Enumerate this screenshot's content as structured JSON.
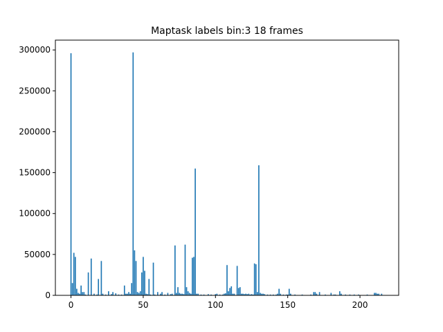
{
  "chart_data": {
    "type": "bar",
    "title": "Maptask labels bin:3 18 frames",
    "xlabel": "",
    "ylabel": "",
    "xlim": [
      -10.8,
      226.8
    ],
    "ylim": [
      0,
      312000
    ],
    "grid": false,
    "color": "#1f77b4",
    "x_ticks": [
      0,
      50,
      100,
      150,
      200
    ],
    "y_ticks": [
      0,
      50000,
      100000,
      150000,
      200000,
      250000,
      300000
    ],
    "x_tick_labels": [
      "0",
      "50",
      "100",
      "150",
      "200"
    ],
    "y_tick_labels": [
      "0",
      "50000",
      "100000",
      "150000",
      "200000",
      "250000",
      "300000"
    ],
    "bars": [
      {
        "x": 0,
        "y": 296000
      },
      {
        "x": 1,
        "y": 15000
      },
      {
        "x": 2,
        "y": 52000
      },
      {
        "x": 3,
        "y": 47000
      },
      {
        "x": 4,
        "y": 8000
      },
      {
        "x": 5,
        "y": 3000
      },
      {
        "x": 6,
        "y": 2000
      },
      {
        "x": 7,
        "y": 12000
      },
      {
        "x": 8,
        "y": 4000
      },
      {
        "x": 9,
        "y": 4000
      },
      {
        "x": 10,
        "y": 1000
      },
      {
        "x": 12,
        "y": 28000
      },
      {
        "x": 14,
        "y": 45000
      },
      {
        "x": 16,
        "y": 2000
      },
      {
        "x": 18,
        "y": 1000
      },
      {
        "x": 19,
        "y": 20000
      },
      {
        "x": 21,
        "y": 42000
      },
      {
        "x": 22,
        "y": 2000
      },
      {
        "x": 24,
        "y": 1000
      },
      {
        "x": 26,
        "y": 5000
      },
      {
        "x": 28,
        "y": 1500
      },
      {
        "x": 29,
        "y": 4000
      },
      {
        "x": 31,
        "y": 2500
      },
      {
        "x": 33,
        "y": 1000
      },
      {
        "x": 35,
        "y": 1000
      },
      {
        "x": 37,
        "y": 12000
      },
      {
        "x": 38,
        "y": 2000
      },
      {
        "x": 39,
        "y": 2000
      },
      {
        "x": 40,
        "y": 4000
      },
      {
        "x": 41,
        "y": 2000
      },
      {
        "x": 42,
        "y": 15000
      },
      {
        "x": 43,
        "y": 297000
      },
      {
        "x": 44,
        "y": 55000
      },
      {
        "x": 45,
        "y": 42000
      },
      {
        "x": 46,
        "y": 4000
      },
      {
        "x": 47,
        "y": 3000
      },
      {
        "x": 48,
        "y": 5000
      },
      {
        "x": 49,
        "y": 28000
      },
      {
        "x": 50,
        "y": 47000
      },
      {
        "x": 51,
        "y": 30000
      },
      {
        "x": 52,
        "y": 2000
      },
      {
        "x": 53,
        "y": 1500
      },
      {
        "x": 54,
        "y": 20000
      },
      {
        "x": 55,
        "y": 1000
      },
      {
        "x": 57,
        "y": 40000
      },
      {
        "x": 58,
        "y": 1000
      },
      {
        "x": 60,
        "y": 4000
      },
      {
        "x": 62,
        "y": 2000
      },
      {
        "x": 63,
        "y": 4000
      },
      {
        "x": 65,
        "y": 1000
      },
      {
        "x": 67,
        "y": 3000
      },
      {
        "x": 69,
        "y": 1500
      },
      {
        "x": 70,
        "y": 2000
      },
      {
        "x": 72,
        "y": 61000
      },
      {
        "x": 73,
        "y": 3000
      },
      {
        "x": 74,
        "y": 10000
      },
      {
        "x": 75,
        "y": 3000
      },
      {
        "x": 76,
        "y": 2000
      },
      {
        "x": 77,
        "y": 2000
      },
      {
        "x": 78,
        "y": 1500
      },
      {
        "x": 79,
        "y": 62000
      },
      {
        "x": 80,
        "y": 10000
      },
      {
        "x": 81,
        "y": 5000
      },
      {
        "x": 82,
        "y": 3000
      },
      {
        "x": 83,
        "y": 2000
      },
      {
        "x": 84,
        "y": 46000
      },
      {
        "x": 85,
        "y": 47000
      },
      {
        "x": 86,
        "y": 155000
      },
      {
        "x": 87,
        "y": 2000
      },
      {
        "x": 88,
        "y": 2000
      },
      {
        "x": 90,
        "y": 1000
      },
      {
        "x": 92,
        "y": 1000
      },
      {
        "x": 95,
        "y": 1500
      },
      {
        "x": 97,
        "y": 1000
      },
      {
        "x": 100,
        "y": 1500
      },
      {
        "x": 101,
        "y": 2000
      },
      {
        "x": 103,
        "y": 1000
      },
      {
        "x": 105,
        "y": 1000
      },
      {
        "x": 106,
        "y": 2000
      },
      {
        "x": 107,
        "y": 2500
      },
      {
        "x": 108,
        "y": 37000
      },
      {
        "x": 109,
        "y": 5000
      },
      {
        "x": 110,
        "y": 9000
      },
      {
        "x": 111,
        "y": 11000
      },
      {
        "x": 112,
        "y": 2000
      },
      {
        "x": 113,
        "y": 2000
      },
      {
        "x": 115,
        "y": 36000
      },
      {
        "x": 116,
        "y": 9000
      },
      {
        "x": 117,
        "y": 10000
      },
      {
        "x": 118,
        "y": 2000
      },
      {
        "x": 119,
        "y": 2000
      },
      {
        "x": 120,
        "y": 1500
      },
      {
        "x": 121,
        "y": 2000
      },
      {
        "x": 122,
        "y": 1500
      },
      {
        "x": 123,
        "y": 2000
      },
      {
        "x": 124,
        "y": 1000
      },
      {
        "x": 125,
        "y": 1500
      },
      {
        "x": 126,
        "y": 1000
      },
      {
        "x": 127,
        "y": 39000
      },
      {
        "x": 128,
        "y": 38000
      },
      {
        "x": 129,
        "y": 4000
      },
      {
        "x": 130,
        "y": 159000
      },
      {
        "x": 131,
        "y": 3000
      },
      {
        "x": 132,
        "y": 2000
      },
      {
        "x": 133,
        "y": 2000
      },
      {
        "x": 134,
        "y": 1500
      },
      {
        "x": 136,
        "y": 1000
      },
      {
        "x": 138,
        "y": 1000
      },
      {
        "x": 140,
        "y": 1000
      },
      {
        "x": 142,
        "y": 1000
      },
      {
        "x": 143,
        "y": 2000
      },
      {
        "x": 144,
        "y": 8000
      },
      {
        "x": 145,
        "y": 2000
      },
      {
        "x": 147,
        "y": 1000
      },
      {
        "x": 149,
        "y": 1000
      },
      {
        "x": 150,
        "y": 1000
      },
      {
        "x": 151,
        "y": 8000
      },
      {
        "x": 152,
        "y": 2000
      },
      {
        "x": 155,
        "y": 1000
      },
      {
        "x": 160,
        "y": 1000
      },
      {
        "x": 166,
        "y": 1000
      },
      {
        "x": 168,
        "y": 4000
      },
      {
        "x": 169,
        "y": 4000
      },
      {
        "x": 170,
        "y": 2000
      },
      {
        "x": 172,
        "y": 4000
      },
      {
        "x": 176,
        "y": 1000
      },
      {
        "x": 180,
        "y": 3000
      },
      {
        "x": 182,
        "y": 1000
      },
      {
        "x": 183,
        "y": 1000
      },
      {
        "x": 186,
        "y": 5000
      },
      {
        "x": 187,
        "y": 2000
      },
      {
        "x": 190,
        "y": 1000
      },
      {
        "x": 193,
        "y": 1000
      },
      {
        "x": 196,
        "y": 1000
      },
      {
        "x": 199,
        "y": 1000
      },
      {
        "x": 205,
        "y": 1000
      },
      {
        "x": 210,
        "y": 3000
      },
      {
        "x": 211,
        "y": 3000
      },
      {
        "x": 212,
        "y": 2000
      },
      {
        "x": 213,
        "y": 2000
      },
      {
        "x": 215,
        "y": 2000
      }
    ]
  }
}
